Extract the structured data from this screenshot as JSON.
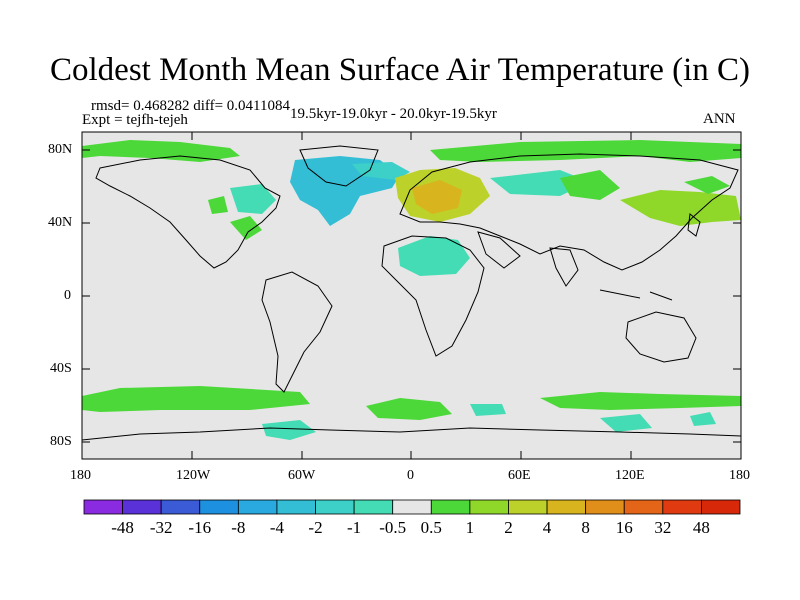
{
  "title": "Coldest Month Mean Surface Air Temperature (in C)",
  "stats": "rmsd= 0.468282  diff= 0.0411084",
  "experiment": "Expt = tejfh-tejeh",
  "subtitle": "19.5kyr-19.0kyr - 20.0kyr-19.5kyr",
  "season": "ANN",
  "map": {
    "projection": "cylindrical-equidistant",
    "lon_range": [
      -180,
      180
    ],
    "lat_range": [
      -90,
      90
    ],
    "lat_ticks": [
      {
        "value": 80,
        "label": "80N"
      },
      {
        "value": 40,
        "label": "40N"
      },
      {
        "value": 0,
        "label": "0"
      },
      {
        "value": -40,
        "label": "40S"
      },
      {
        "value": -80,
        "label": "80S"
      }
    ],
    "lon_ticks": [
      {
        "value": -180,
        "label": "180"
      },
      {
        "value": -120,
        "label": "120W"
      },
      {
        "value": -60,
        "label": "60W"
      },
      {
        "value": 0,
        "label": "0"
      },
      {
        "value": 60,
        "label": "60E"
      },
      {
        "value": 120,
        "label": "120E"
      },
      {
        "value": 180,
        "label": "180"
      }
    ],
    "background_color": "#e6e6e6",
    "coastline_color": "#000000"
  },
  "colorbar": {
    "levels": [
      "-48",
      "-32",
      "-16",
      "-8",
      "-4",
      "-2",
      "-1",
      "-0.5",
      "0.5",
      "1",
      "2",
      "4",
      "8",
      "16",
      "32",
      "48"
    ],
    "colors": [
      "#8a2be2",
      "#5a30d8",
      "#3a5ad6",
      "#1e90e0",
      "#2aa8e0",
      "#33bed6",
      "#3cd0c8",
      "#44dcb4",
      "#e6e6e6",
      "#4cd838",
      "#8fd82a",
      "#bcd22a",
      "#d8b41e",
      "#e0901a",
      "#e46418",
      "#e03a10",
      "#d8280a"
    ]
  }
}
